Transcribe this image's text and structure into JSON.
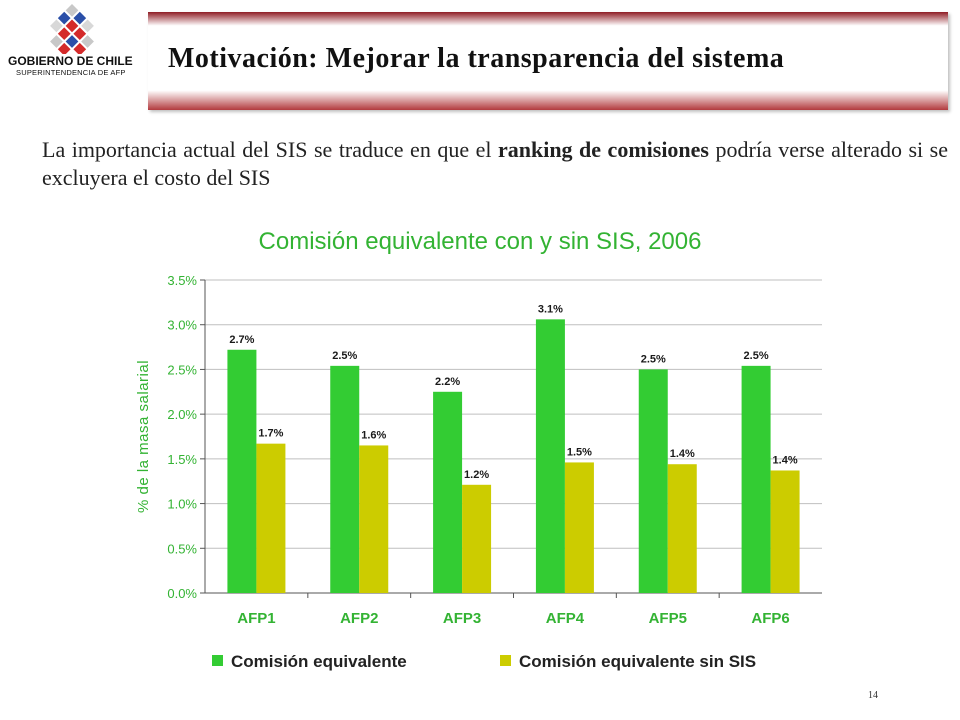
{
  "header": {
    "org_name": "GOBIERNO DE CHILE",
    "org_sub": "SUPERINTENDENCIA DE AFP",
    "title": "Motivación: Mejorar la transparencia del sistema"
  },
  "lead": {
    "text_1": "La importancia actual del SIS se traduce en que el ",
    "bold": "ranking de comisiones",
    "text_2": " podría verse alterado si se excluyera el costo del SIS"
  },
  "colors": {
    "series_1": "#33cc33",
    "series_2": "#cccc00",
    "axis_text": "#33b333",
    "label_text": "#1a1a1a",
    "brand_red": "#8f1c24"
  },
  "chart_data": {
    "type": "bar",
    "title": "Comisión equivalente con y sin SIS, 2006",
    "xlabel": "",
    "ylabel": "% de la masa salarial",
    "ylim": [
      0,
      3.5
    ],
    "yticks": [
      "0.0%",
      "0.5%",
      "1.0%",
      "1.5%",
      "2.0%",
      "2.5%",
      "3.0%",
      "3.5%"
    ],
    "categories": [
      "AFP1",
      "AFP2",
      "AFP3",
      "AFP4",
      "AFP5",
      "AFP6"
    ],
    "series": [
      {
        "name": "Comisión equivalente",
        "values": [
          2.72,
          2.54,
          2.25,
          3.06,
          2.5,
          2.54
        ],
        "labels": [
          "2.7%",
          "2.5%",
          "2.2%",
          "3.1%",
          "2.5%",
          "2.5%"
        ]
      },
      {
        "name": "Comisión equivalente sin SIS",
        "values": [
          1.67,
          1.65,
          1.21,
          1.46,
          1.44,
          1.37
        ],
        "labels": [
          "1.7%",
          "1.6%",
          "1.2%",
          "1.5%",
          "1.4%",
          "1.4%"
        ]
      }
    ],
    "grid": true,
    "legend": "bottom"
  },
  "page_number": "14"
}
